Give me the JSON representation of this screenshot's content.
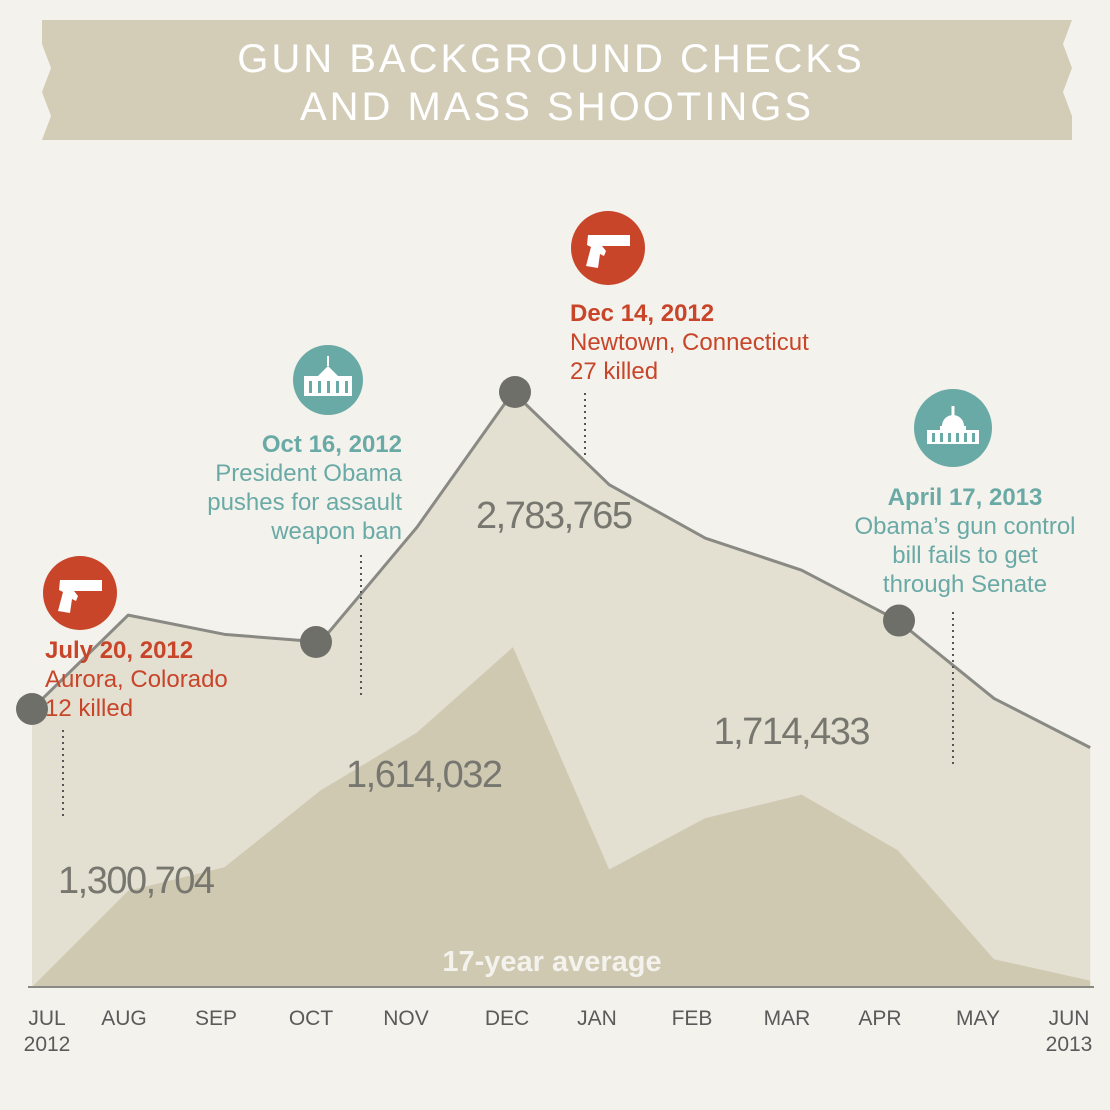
{
  "title": {
    "line1": "GUN BACKGROUND CHECKS",
    "line2": "AND MASS SHOOTINGS"
  },
  "colors": {
    "banner": "#d3cdb8",
    "background": "#f4f2ec",
    "area_main": "#e3dfd1",
    "area_avg": "#cfc9b2",
    "line": "#8a8a84",
    "marker": "#6f6f6a",
    "shooting": "#c8452a",
    "politics": "#6aaaa6"
  },
  "chart_data": {
    "type": "area",
    "title": "GUN BACKGROUND CHECKS AND MASS SHOOTINGS",
    "categories": [
      "JUL 2012",
      "AUG",
      "SEP",
      "OCT",
      "NOV",
      "DEC",
      "JAN",
      "FEB",
      "MAR",
      "APR",
      "MAY",
      "JUN 2013"
    ],
    "x_tick_lines": [
      [
        "JUL",
        "2012"
      ],
      [
        "AUG"
      ],
      [
        "SEP"
      ],
      [
        "OCT"
      ],
      [
        "NOV"
      ],
      [
        "DEC"
      ],
      [
        "JAN"
      ],
      [
        "FEB"
      ],
      [
        "MAR"
      ],
      [
        "APR"
      ],
      [
        "MAY"
      ],
      [
        "JUN",
        "2013"
      ]
    ],
    "series": [
      {
        "kind": "checks",
        "values": [
          1300704,
          1740000,
          1650000,
          1614032,
          2150000,
          2783765,
          2350000,
          2100000,
          1950000,
          1714433,
          1350000,
          1120000
        ]
      },
      {
        "name": "17-year average",
        "kind": "average",
        "values": [
          0,
          450000,
          560000,
          920000,
          1190000,
          1590000,
          550000,
          790000,
          900000,
          640000,
          130000,
          30000
        ]
      }
    ],
    "labeled_points": [
      {
        "index": 0,
        "text": "1,300,704"
      },
      {
        "index": 3,
        "text": "1,614,032"
      },
      {
        "index": 5,
        "text": "2,783,765"
      },
      {
        "index": 9,
        "text": "1,714,433"
      }
    ],
    "annotations": [
      {
        "kind": "shooting",
        "icon": "handgun-icon",
        "date": "July 20, 2012",
        "lines": [
          "Aurora, Colorado",
          "12 killed"
        ],
        "at": "Jul 20, 2012"
      },
      {
        "kind": "politics",
        "icon": "white-house-icon",
        "date": "Oct 16, 2012",
        "lines": [
          "President Obama",
          "pushes for assault",
          "weapon ban"
        ],
        "at": "Oct 16, 2012"
      },
      {
        "kind": "shooting",
        "icon": "handgun-icon",
        "date": "Dec 14, 2012",
        "lines": [
          "Newtown, Connecticut",
          "27 killed"
        ],
        "at": "Dec 14, 2012"
      },
      {
        "kind": "politics",
        "icon": "capitol-icon",
        "date": "April 17, 2013",
        "lines": [
          "Obama’s gun control",
          "bill fails to get",
          "through Senate"
        ],
        "at": "Apr 17, 2013"
      }
    ]
  }
}
